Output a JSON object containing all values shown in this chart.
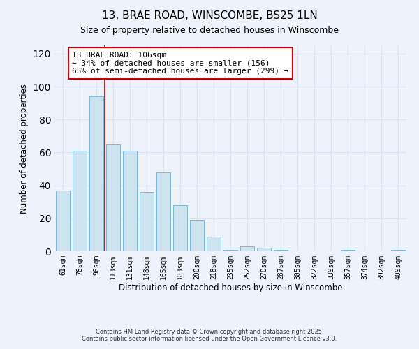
{
  "title": "13, BRAE ROAD, WINSCOMBE, BS25 1LN",
  "subtitle": "Size of property relative to detached houses in Winscombe",
  "xlabel": "Distribution of detached houses by size in Winscombe",
  "ylabel": "Number of detached properties",
  "categories": [
    "61sqm",
    "78sqm",
    "96sqm",
    "113sqm",
    "131sqm",
    "148sqm",
    "165sqm",
    "183sqm",
    "200sqm",
    "218sqm",
    "235sqm",
    "252sqm",
    "270sqm",
    "287sqm",
    "305sqm",
    "322sqm",
    "339sqm",
    "357sqm",
    "374sqm",
    "392sqm",
    "409sqm"
  ],
  "bar_counts": [
    37,
    61,
    94,
    65,
    61,
    36,
    48,
    28,
    19,
    9,
    1,
    3,
    2,
    1,
    0,
    0,
    0,
    1,
    0,
    0,
    1
  ],
  "bar_color": "#cde4f0",
  "bar_edge_color": "#7bb8d4",
  "marker_line_color": "#aa0000",
  "ylim": [
    0,
    125
  ],
  "yticks": [
    0,
    20,
    40,
    60,
    80,
    100,
    120
  ],
  "annotation_title": "13 BRAE ROAD: 106sqm",
  "annotation_line1": "← 34% of detached houses are smaller (156)",
  "annotation_line2": "65% of semi-detached houses are larger (299) →",
  "annotation_box_color": "#ffffff",
  "annotation_box_edge": "#cc0000",
  "footer1": "Contains HM Land Registry data © Crown copyright and database right 2025.",
  "footer2": "Contains public sector information licensed under the Open Government Licence v3.0.",
  "background_color": "#eef2fb",
  "grid_color": "#d8e4f0",
  "title_fontsize": 11,
  "subtitle_fontsize": 9
}
